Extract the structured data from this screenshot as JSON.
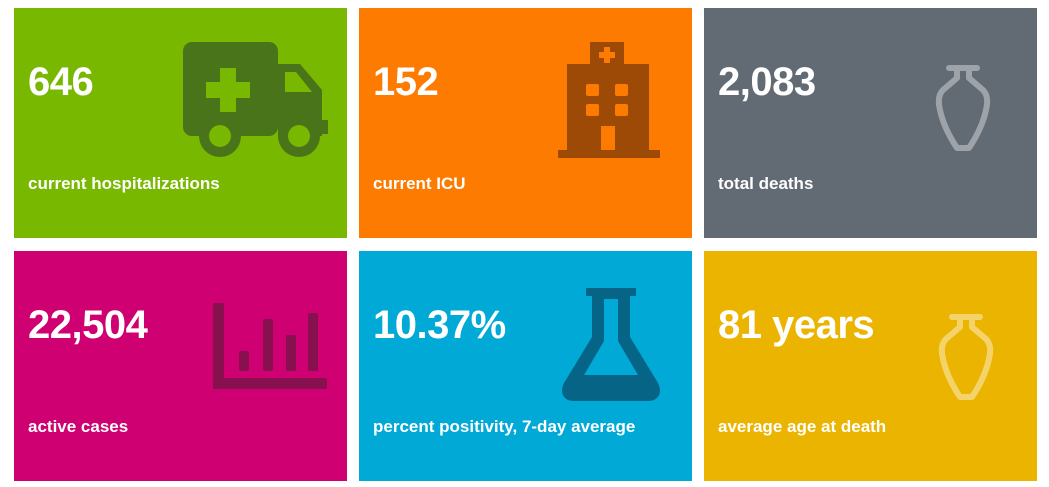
{
  "cards": [
    {
      "value": "646",
      "label": "current hospitalizations",
      "color": "#78b800",
      "icon": "ambulance-icon"
    },
    {
      "value": "152",
      "label": "current ICU",
      "color": "#fd7b00",
      "icon": "hospital-icon"
    },
    {
      "value": "2,083",
      "label": "total deaths",
      "color": "#626a74",
      "icon": "urn-icon"
    },
    {
      "value": "22,504",
      "label": "active cases",
      "color": "#cf0071",
      "icon": "bar-chart-icon"
    },
    {
      "value": "10.37%",
      "label": "percent positivity, 7-day average",
      "color": "#00a9d6",
      "icon": "flask-icon"
    },
    {
      "value": "81 years",
      "label": "average age at death",
      "color": "#ebb400",
      "icon": "urn-icon"
    }
  ]
}
